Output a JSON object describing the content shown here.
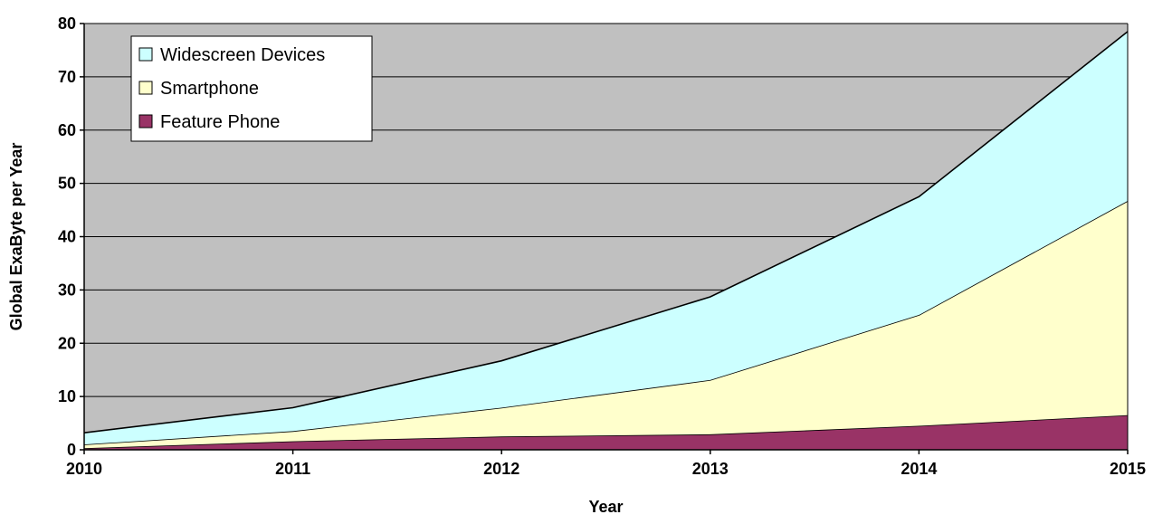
{
  "chart_data": {
    "type": "area",
    "stacked": true,
    "title": "",
    "xlabel": "Year",
    "ylabel": "Global ExaByte per Year",
    "categories": [
      "2010",
      "2011",
      "2012",
      "2013",
      "2014",
      "2015"
    ],
    "ylim": [
      0,
      80
    ],
    "yticks": [
      "0",
      "10",
      "20",
      "30",
      "40",
      "50",
      "60",
      "70",
      "80"
    ],
    "grid": true,
    "legend_position": "top-left",
    "plot_background": "#c0c0c0",
    "series": [
      {
        "name": "Feature Phone",
        "color": "#993366",
        "values": [
          0.3,
          1.6,
          2.5,
          2.9,
          4.5,
          6.5
        ]
      },
      {
        "name": "Smartphone",
        "color": "#ffffcc",
        "values": [
          0.7,
          1.9,
          5.4,
          10.2,
          20.8,
          40.2
        ]
      },
      {
        "name": "Widescreen Devices",
        "color": "#ccffff",
        "values": [
          2.2,
          4.4,
          8.8,
          15.6,
          22.2,
          31.8
        ]
      }
    ],
    "legend_order": [
      "Widescreen Devices",
      "Smartphone",
      "Feature Phone"
    ]
  }
}
